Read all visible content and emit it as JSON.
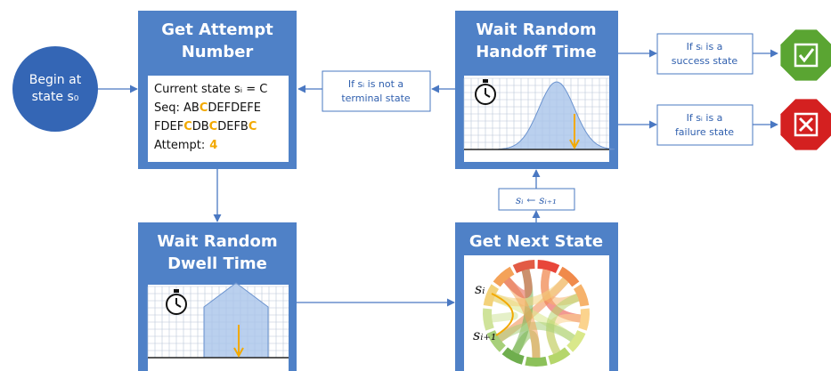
{
  "nodes": {
    "begin": {
      "line1": "Begin at",
      "line2": "state s₀"
    },
    "get_attempt": {
      "title_line1": "Get Attempt",
      "title_line2": "Number",
      "state_line": "Current state sᵢ = C",
      "seq_line1": [
        "Seq: AB",
        "C",
        "DEFDEFE"
      ],
      "seq_line2": [
        "FDEF",
        "C",
        "DB",
        "C",
        "DEFB",
        "C"
      ],
      "attempt_label": "Attempt:",
      "attempt_value": 4
    },
    "handoff": {
      "title_line1": "Wait Random",
      "title_line2": "Handoff Time"
    },
    "not_terminal": {
      "line1": "If sᵢ is not a",
      "line2": "terminal state"
    },
    "success": {
      "line1": "If sᵢ is a",
      "line2": "success state"
    },
    "failure": {
      "line1": "If sᵢ is a",
      "line2": "failure state"
    },
    "dwell": {
      "title_line1": "Wait Random",
      "title_line2": "Dwell Time"
    },
    "next_state": {
      "title": "Get Next State",
      "label_current": "sᵢ",
      "label_next": "sᵢ₊₁"
    },
    "update": {
      "label": "sᵢ ← sᵢ₊₁"
    }
  }
}
